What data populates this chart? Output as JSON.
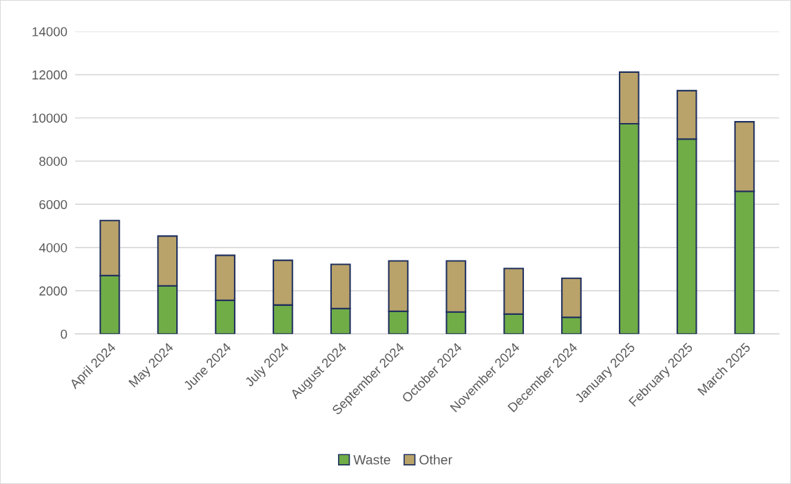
{
  "chart_data": {
    "type": "bar",
    "stacked": true,
    "categories": [
      "April 2024",
      "May 2024",
      "June 2024",
      "July 2024",
      "August 2024",
      "September 2024",
      "October 2024",
      "November 2024",
      "December 2024",
      "January 2025",
      "February 2025",
      "March 2025"
    ],
    "series": [
      {
        "name": "Waste",
        "color": "#70ad47",
        "values": [
          2700,
          2230,
          1560,
          1340,
          1180,
          1050,
          1020,
          920,
          770,
          9730,
          9020,
          6600
        ]
      },
      {
        "name": "Other",
        "color": "#b9a36a",
        "values": [
          2550,
          2300,
          2080,
          2070,
          2040,
          2330,
          2360,
          2110,
          1810,
          2390,
          2240,
          3220
        ]
      }
    ],
    "ylim": [
      0,
      14000
    ],
    "yticks": [
      0,
      2000,
      4000,
      6000,
      8000,
      10000,
      12000,
      14000
    ],
    "grid": "y",
    "legend": "bottom"
  }
}
